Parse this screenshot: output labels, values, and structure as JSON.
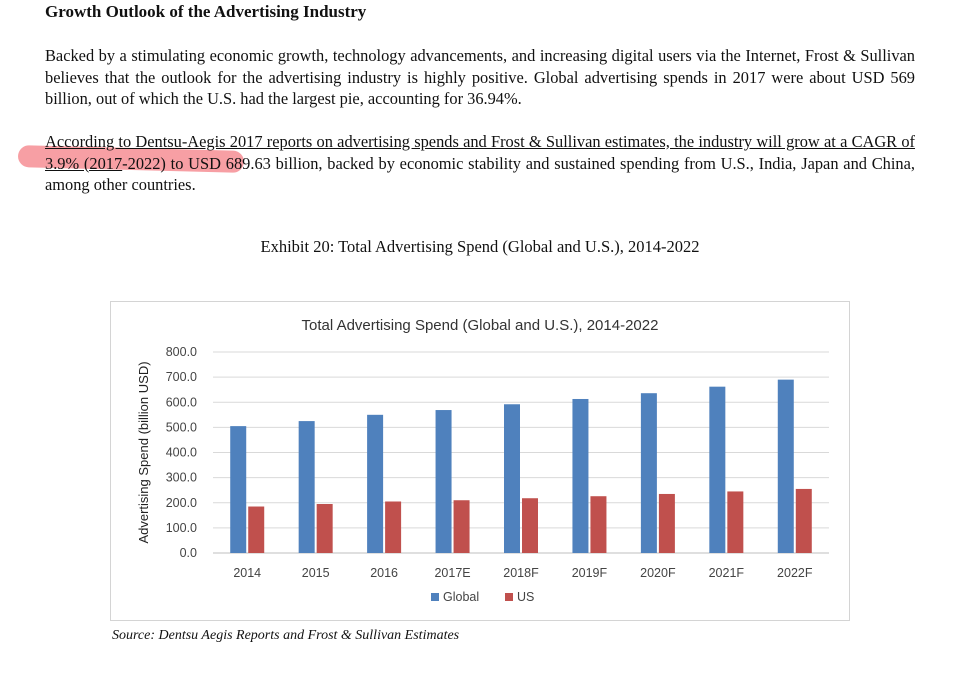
{
  "heading": "Growth Outlook of the Advertising Industry",
  "paragraph1": "Backed by a stimulating economic growth, technology advancements, and increasing digital users via the Internet, Frost & Sullivan believes that the outlook for the advertising industry is highly positive. Global advertising spends in 2017 were about USD 569 billion, out of which the U.S. had the largest pie, accounting for 36.94%.",
  "paragraph2": {
    "part1": "According to Dentsu-Aegis 2017 reports on advertising spends and Frost & Sullivan estimates, the industry will grow ",
    "part2_highlighted": "at a CAGR of 3.9% (2017",
    "part3": "-2022) to USD 689.63 billion, backed by economic stability and sustained spending from U.S., India, Japan and China, among other countries."
  },
  "exhibit_title": "Exhibit 20: Total Advertising Spend (Global and U.S.), 2014-2022",
  "source": "Source: Dentsu Aegis Reports and Frost & Sullivan Estimates",
  "colors": {
    "global": "#4f81bd",
    "us": "#c0504d",
    "highlight": "#f0505a"
  },
  "chart_data": {
    "type": "bar",
    "title": "Total Advertising Spend (Global and U.S.), 2014-2022",
    "ylabel": "Advertising Spend (billion USD)",
    "xlabel": "",
    "ylim": [
      0,
      800
    ],
    "yticks": [
      "0.0",
      "100.0",
      "200.0",
      "300.0",
      "400.0",
      "500.0",
      "600.0",
      "700.0",
      "800.0"
    ],
    "grid": true,
    "legend_position": "bottom",
    "categories": [
      "2014",
      "2015",
      "2016",
      "2017E",
      "2018F",
      "2019F",
      "2020F",
      "2021F",
      "2022F"
    ],
    "series": [
      {
        "name": "Global",
        "color": "#4f81bd",
        "values": [
          505,
          525,
          550,
          569,
          592,
          613,
          636,
          662,
          690
        ]
      },
      {
        "name": "US",
        "color": "#c0504d",
        "values": [
          185,
          195,
          205,
          210,
          218,
          226,
          235,
          245,
          255
        ]
      }
    ]
  }
}
